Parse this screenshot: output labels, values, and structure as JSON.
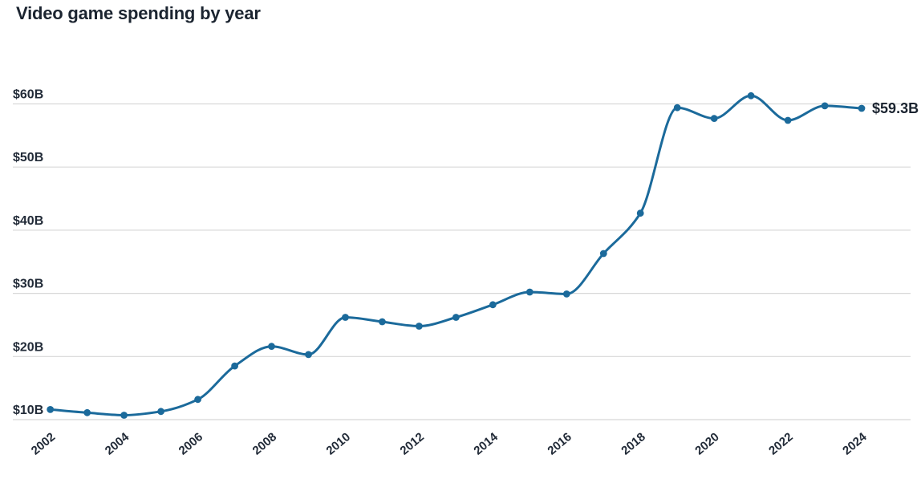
{
  "chart_data": {
    "type": "line",
    "title": "Video game spending by year",
    "series_name": "Video game spending",
    "unit": "billions of dollars",
    "x": [
      2002,
      2003,
      2004,
      2005,
      2006,
      2007,
      2008,
      2009,
      2010,
      2011,
      2012,
      2013,
      2014,
      2015,
      2016,
      2017,
      2018,
      2019,
      2020,
      2021,
      2022,
      2023,
      2024
    ],
    "values": [
      11.6,
      11.1,
      10.7,
      11.3,
      13.2,
      18.5,
      21.6,
      20.3,
      26.2,
      25.5,
      24.8,
      26.2,
      28.2,
      30.2,
      29.9,
      36.3,
      42.7,
      59.4,
      57.7,
      61.3,
      57.4,
      59.7,
      59.3
    ],
    "y_ticks": [
      10,
      20,
      30,
      40,
      50,
      60
    ],
    "y_tick_labels": [
      "$10B",
      "$20B",
      "$30B",
      "$40B",
      "$50B",
      "$60B"
    ],
    "x_tick_years": [
      2002,
      2004,
      2006,
      2008,
      2010,
      2012,
      2014,
      2016,
      2018,
      2020,
      2022,
      2024
    ],
    "ylim": [
      10,
      62
    ],
    "xlim": [
      2002,
      2024
    ],
    "grid": "horizontal",
    "legend": "none",
    "end_label": "$59.3B",
    "line_color": "#1b6a9b",
    "grid_color": "#d8d8d8",
    "label_color": "#222b38",
    "title_color": "#1b2430",
    "background_color": "#ffffff"
  }
}
